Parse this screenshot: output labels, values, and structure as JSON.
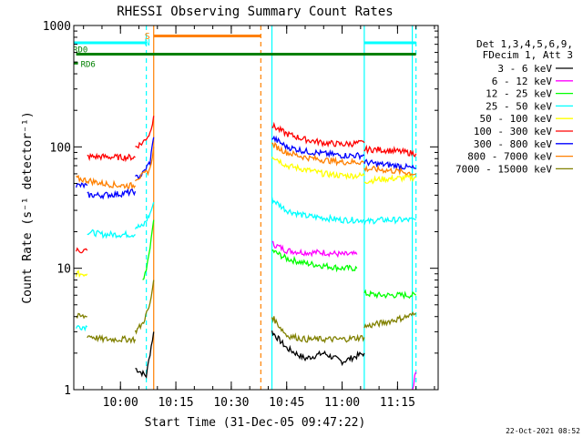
{
  "footer_timestamp": "22-Oct-2021 08:52",
  "chart_data": {
    "type": "line",
    "title": "RHESSI Observing Summary Count Rates",
    "xlabel": "Start Time (31-Dec-05 09:47:22)",
    "ylabel": "Count Rate (s⁻¹ detector⁻¹)",
    "y_scale": "log",
    "ylim": [
      1,
      1000
    ],
    "xlim": [
      "09:47:22",
      "11:26:00"
    ],
    "x_ticks": [
      "10:00",
      "10:15",
      "10:30",
      "10:45",
      "11:00",
      "11:15"
    ],
    "y_ticks": [
      "1",
      "10",
      "100",
      "1000"
    ],
    "legend_position": "right",
    "legend_header": [
      "Det 1,3,4,5,6,9,",
      "FDecim 1, Att 3"
    ],
    "series": [
      {
        "name": "3 - 6 keV",
        "color": "#000000",
        "segments": [
          {
            "x": [
              "10:04",
              "10:07",
              "10:08",
              "10:09"
            ],
            "y": [
              1.5,
              1.3,
              2.0,
              3.0
            ]
          },
          {
            "x": [
              "10:41",
              "10:45",
              "10:50",
              "10:55",
              "11:00",
              "11:06"
            ],
            "y": [
              3.0,
              2.2,
              1.8,
              2.0,
              1.7,
              2.0
            ]
          }
        ]
      },
      {
        "name": "6 - 12 keV",
        "color": "#ff00ff",
        "segments": [
          {
            "x": [
              "10:41",
              "10:45",
              "10:50",
              "10:55",
              "11:00",
              "11:04"
            ],
            "y": [
              16,
              14,
              13.5,
              13.5,
              13,
              13
            ]
          },
          {
            "x": [
              "11:19",
              "11:20"
            ],
            "y": [
              1.0,
              1.4
            ]
          }
        ]
      },
      {
        "name": "12 - 25 keV",
        "color": "#00ff00",
        "segments": [
          {
            "x": [
              "10:41",
              "10:45",
              "10:50",
              "10:55",
              "11:00",
              "11:04"
            ],
            "y": [
              14,
              12,
              11,
              10.5,
              10,
              10
            ]
          },
          {
            "x": [
              "11:06",
              "11:10",
              "11:15",
              "11:20"
            ],
            "y": [
              6.2,
              6.0,
              6.0,
              6.0
            ]
          },
          {
            "x": [
              "10:06",
              "10:07",
              "10:08",
              "10:09"
            ],
            "y": [
              8,
              10,
              15,
              25
            ]
          }
        ]
      },
      {
        "name": "25 - 50 keV",
        "color": "#00ffff",
        "segments": [
          {
            "x": [
              "09:48",
              "09:51"
            ],
            "y": [
              3.3,
              3.3
            ]
          },
          {
            "x": [
              "09:51",
              "09:55",
              "10:00",
              "10:04"
            ],
            "y": [
              20,
              19,
              19,
              19
            ]
          },
          {
            "x": [
              "10:04",
              "10:06",
              "10:08",
              "10:09"
            ],
            "y": [
              22,
              22,
              28,
              35
            ]
          },
          {
            "x": [
              "10:41",
              "10:45",
              "10:50",
              "10:55",
              "11:00",
              "11:06"
            ],
            "y": [
              37,
              30,
              27,
              26,
              25,
              25
            ]
          },
          {
            "x": [
              "11:06",
              "11:10",
              "11:15",
              "11:20"
            ],
            "y": [
              24,
              25,
              25,
              25
            ]
          }
        ]
      },
      {
        "name": "50 - 100 keV",
        "color": "#ffff00",
        "segments": [
          {
            "x": [
              "09:48",
              "09:51"
            ],
            "y": [
              9,
              9
            ]
          },
          {
            "x": [
              "10:41",
              "10:45",
              "10:50",
              "10:55",
              "11:00",
              "11:06"
            ],
            "y": [
              85,
              70,
              65,
              60,
              58,
              58
            ]
          },
          {
            "x": [
              "11:06",
              "11:10",
              "11:15",
              "11:20"
            ],
            "y": [
              52,
              54,
              55,
              56
            ]
          }
        ]
      },
      {
        "name": "100 - 300 keV",
        "color": "#ff0000",
        "segments": [
          {
            "x": [
              "09:48",
              "09:51"
            ],
            "y": [
              14,
              14
            ]
          },
          {
            "x": [
              "09:51",
              "09:55",
              "10:00",
              "10:04"
            ],
            "y": [
              83,
              83,
              82,
              82
            ]
          },
          {
            "x": [
              "10:04",
              "10:06",
              "10:08",
              "10:09"
            ],
            "y": [
              100,
              108,
              130,
              180
            ]
          },
          {
            "x": [
              "10:41",
              "10:45",
              "10:50",
              "10:55",
              "11:00",
              "11:06"
            ],
            "y": [
              150,
              128,
              115,
              108,
              105,
              108
            ]
          },
          {
            "x": [
              "11:06",
              "11:10",
              "11:15",
              "11:20"
            ],
            "y": [
              95,
              95,
              92,
              88
            ]
          }
        ]
      },
      {
        "name": "300 - 800 keV",
        "color": "#0000ff",
        "segments": [
          {
            "x": [
              "09:48",
              "09:51"
            ],
            "y": [
              48,
              48
            ]
          },
          {
            "x": [
              "09:51",
              "09:55",
              "10:00",
              "10:04"
            ],
            "y": [
              40,
              40,
              41,
              43
            ]
          },
          {
            "x": [
              "10:04",
              "10:06",
              "10:08",
              "10:09"
            ],
            "y": [
              55,
              60,
              75,
              120
            ]
          },
          {
            "x": [
              "10:41",
              "10:45",
              "10:50",
              "10:55",
              "11:00",
              "11:06"
            ],
            "y": [
              120,
              100,
              92,
              88,
              85,
              85
            ]
          },
          {
            "x": [
              "11:06",
              "11:10",
              "11:15",
              "11:20"
            ],
            "y": [
              75,
              72,
              70,
              66
            ]
          }
        ]
      },
      {
        "name": "800 - 7000 keV",
        "color": "#ff8000",
        "segments": [
          {
            "x": [
              "09:48",
              "09:51",
              "09:55",
              "10:00",
              "10:04"
            ],
            "y": [
              55,
              53,
              50,
              48,
              48
            ]
          },
          {
            "x": [
              "10:04",
              "10:06",
              "10:08",
              "10:09"
            ],
            "y": [
              55,
              58,
              65,
              100
            ]
          },
          {
            "x": [
              "10:41",
              "10:45",
              "10:50",
              "10:55",
              "11:00",
              "11:06"
            ],
            "y": [
              105,
              90,
              82,
              78,
              75,
              75
            ]
          },
          {
            "x": [
              "11:06",
              "11:10",
              "11:15",
              "11:20"
            ],
            "y": [
              66,
              65,
              63,
              60
            ]
          }
        ]
      },
      {
        "name": "7000 - 15000 keV",
        "color": "#808000",
        "segments": [
          {
            "x": [
              "09:48",
              "09:51"
            ],
            "y": [
              4.0,
              4.0
            ]
          },
          {
            "x": [
              "09:51",
              "09:55",
              "10:00",
              "10:04"
            ],
            "y": [
              2.8,
              2.6,
              2.6,
              2.6
            ]
          },
          {
            "x": [
              "10:04",
              "10:06",
              "10:08",
              "10:09"
            ],
            "y": [
              3.0,
              3.5,
              5.0,
              8.0
            ]
          },
          {
            "x": [
              "10:41",
              "10:45",
              "10:50",
              "10:55",
              "11:00",
              "11:06"
            ],
            "y": [
              4.0,
              2.8,
              2.6,
              2.6,
              2.6,
              2.7
            ]
          },
          {
            "x": [
              "11:06",
              "11:10",
              "11:15",
              "11:20"
            ],
            "y": [
              3.3,
              3.5,
              3.8,
              4.2
            ]
          }
        ]
      }
    ],
    "vlines": [
      {
        "x": "10:07",
        "color": "#00ffff",
        "style": "dashed"
      },
      {
        "x": "10:09",
        "color": "#ff8000",
        "style": "solid"
      },
      {
        "x": "10:38",
        "color": "#ff8000",
        "style": "dashed"
      },
      {
        "x": "10:41",
        "color": "#00ffff",
        "style": "solid"
      },
      {
        "x": "11:06",
        "color": "#00ffff",
        "style": "solid"
      },
      {
        "x": "11:19",
        "color": "#00ffff",
        "style": "solid"
      },
      {
        "x": "11:20",
        "color": "#00ffff",
        "style": "dashed"
      }
    ],
    "state_bars": [
      {
        "label": "",
        "color": "#00ffff",
        "x": [
          "09:47:22",
          "10:07"
        ],
        "y": 720
      },
      {
        "label": "",
        "color": "#00ffff",
        "x": [
          "11:06",
          "11:20"
        ],
        "y": 720
      },
      {
        "label": "",
        "color": "#ff8000",
        "x": [
          "10:09",
          "10:38"
        ],
        "y": 820
      },
      {
        "label": "RD0",
        "color": "#008000",
        "x": [
          "09:47:22",
          "09:47:22"
        ],
        "y": 580
      },
      {
        "label": "",
        "color": "#008000",
        "x": [
          "09:48",
          "11:20"
        ],
        "y": 580
      },
      {
        "label": "RD6",
        "color": "#008000",
        "x": [
          "09:47:22",
          "09:48:30"
        ],
        "y": 490
      }
    ],
    "annotations": [
      {
        "text": "S",
        "color": "#ff8000",
        "x": "10:09",
        "y": 830
      },
      {
        "text": "N",
        "color": "#00ffff",
        "x": "10:09",
        "y": 730
      }
    ]
  }
}
